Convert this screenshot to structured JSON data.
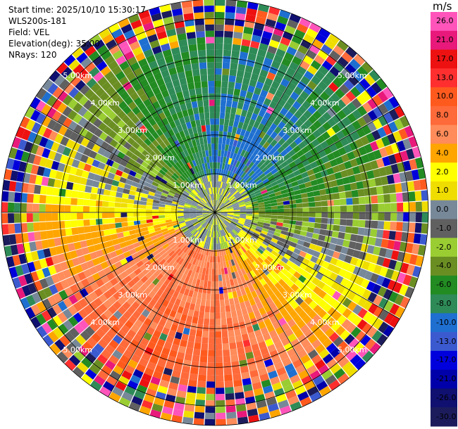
{
  "header": {
    "start_time": "Start time: 2025/10/10 15:30:17",
    "instrument": "WLS200s-181",
    "field": "Field: VEL",
    "elevation": "Elevation(deg): 35.00",
    "nrays": "NRays: 120"
  },
  "chart_data": {
    "type": "ppi",
    "title": "VEL",
    "field": "VEL",
    "units": "m/s",
    "elevation_deg": 35.0,
    "n_rays": 120,
    "max_range_km": 5.5,
    "range_ring_km": [
      1,
      2,
      3,
      4,
      5
    ],
    "range_ring_labels": [
      "1.00km",
      "2.00km",
      "3.00km",
      "4.00km",
      "5.00km"
    ],
    "colorbar": {
      "title": "m/s",
      "labels": [
        "26.0",
        "21.0",
        "17.0",
        "13.0",
        "10.0",
        "8.0",
        "6.0",
        "4.0",
        "2.0",
        "1.0",
        "0.0",
        "-1.0",
        "-2.0",
        "-4.0",
        "-6.0",
        "-8.0",
        "-10.0",
        "-13.0",
        "-17.0",
        "-21.0",
        "-26.0",
        "-30.0"
      ],
      "colors": [
        "#ff55bb",
        "#e8197a",
        "#ee1111",
        "#ff2f2f",
        "#ff5a1e",
        "#ff6a3a",
        "#ff8c5a",
        "#ffa500",
        "#ffff00",
        "#f0dd00",
        "#778899",
        "#606060",
        "#9acd32",
        "#6b8e23",
        "#228b22",
        "#2e8b57",
        "#1e6fd0",
        "#3c5ad0",
        "#0000dd",
        "#0000aa",
        "#101070",
        "#1c1c5c"
      ]
    }
  }
}
